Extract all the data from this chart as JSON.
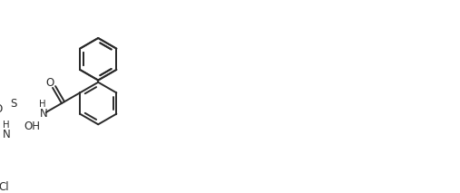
{
  "bg_color": "#ffffff",
  "line_color": "#2a2a2a",
  "line_width": 1.4,
  "font_size": 8.5,
  "figsize": [
    5.07,
    2.13
  ],
  "dpi": 100,
  "xlim": [
    0,
    10.2
  ],
  "ylim": [
    0,
    4.26
  ]
}
